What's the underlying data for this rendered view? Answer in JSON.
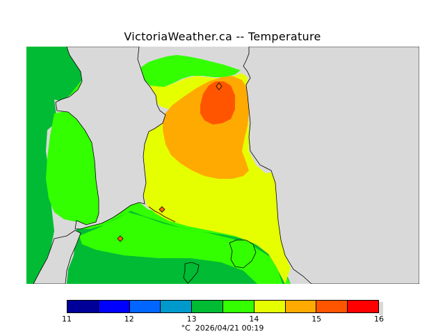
{
  "header": {
    "title": "VictoriaWeather.ca -- Temperature"
  },
  "map": {
    "land_color": "#d9d9d9",
    "coast_color": "#000000",
    "station_color": "#ff6600"
  },
  "legend": {
    "colors": [
      "#000099",
      "#0000ff",
      "#0066ff",
      "#0099cc",
      "#00bb33",
      "#33ff00",
      "#e6ff00",
      "#ffaa00",
      "#ff5500",
      "#ff0000"
    ],
    "ticks": [
      "11",
      "12",
      "13",
      "14",
      "15",
      "16"
    ],
    "footer": "°C  2026/04/21 00:19"
  }
}
